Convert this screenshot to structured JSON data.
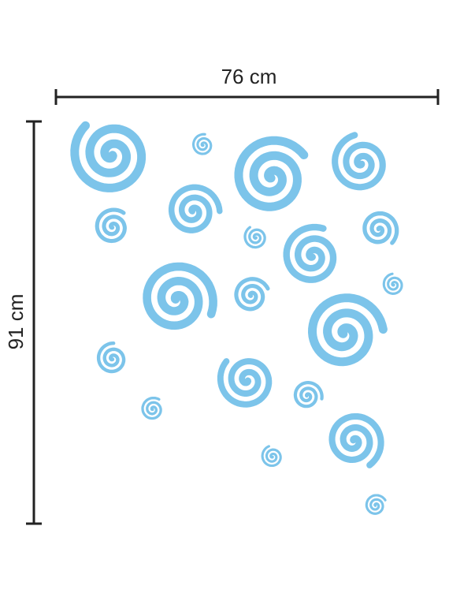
{
  "width_label": "76 cm",
  "height_label": "91 cm"
}
